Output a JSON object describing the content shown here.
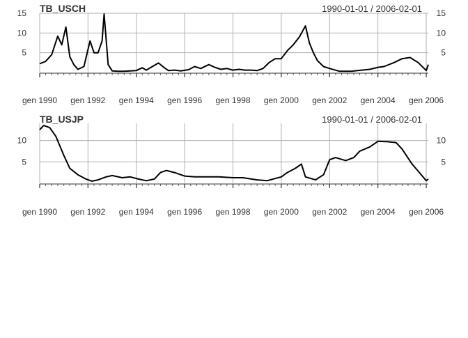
{
  "chart_data": [
    {
      "type": "line",
      "title": "TB_USCH",
      "range_label": "1990-01-01 / 2006-02-01",
      "xlabel": "",
      "ylabel": "",
      "xlim": [
        "1990-01-01",
        "2006-02-01"
      ],
      "ylim": [
        0,
        15
      ],
      "left_ticks": [
        5,
        10,
        15
      ],
      "right_ticks": [
        5,
        10,
        15
      ],
      "x_ticks": [
        {
          "date": "1990-01-01",
          "label": "gen 1990"
        },
        {
          "date": "1992-01-01",
          "label": "gen 1992"
        },
        {
          "date": "1994-01-01",
          "label": "gen 1994"
        },
        {
          "date": "1996-01-01",
          "label": "gen 1996"
        },
        {
          "date": "1998-01-01",
          "label": "gen 1998"
        },
        {
          "date": "2000-01-01",
          "label": "gen 2000"
        },
        {
          "date": "2002-01-01",
          "label": "gen 2002"
        },
        {
          "date": "2004-01-01",
          "label": "gen 2004"
        },
        {
          "date": "2006-01-01",
          "label": "gen 2006"
        }
      ],
      "grid": true,
      "series": [
        {
          "x": [
            "1990-01-01",
            "1990-04-01",
            "1990-07-01",
            "1990-10-01",
            "1990-12-01",
            "1991-02-01",
            "1991-04-01",
            "1991-06-01",
            "1991-08-01",
            "1991-11-01",
            "1992-02-01",
            "1992-04-01",
            "1992-06-01",
            "1992-08-01",
            "1992-09-01",
            "1992-11-01",
            "1993-01-01",
            "1993-04-01",
            "1993-07-01",
            "1993-10-01",
            "1994-01-01",
            "1994-04-01",
            "1994-06-01",
            "1994-09-01",
            "1994-12-01",
            "1995-03-01",
            "1995-05-01",
            "1995-08-01",
            "1995-11-01",
            "1996-03-01",
            "1996-06-01",
            "1996-09-01",
            "1997-01-01",
            "1997-04-01",
            "1997-07-01",
            "1997-10-01",
            "1998-01-01",
            "1998-04-01",
            "1998-07-01",
            "1998-10-01",
            "1999-01-01",
            "1999-04-01",
            "1999-07-01",
            "1999-10-01",
            "2000-01-01",
            "2000-04-01",
            "2000-07-01",
            "2000-10-01",
            "2001-01-01",
            "2001-03-01",
            "2001-05-01",
            "2001-07-01",
            "2001-10-01",
            "2002-01-01",
            "2002-06-01",
            "2002-12-01",
            "2003-03-01",
            "2003-09-01",
            "2004-01-01",
            "2004-04-01",
            "2004-09-01",
            "2005-01-01",
            "2005-05-01",
            "2005-09-01",
            "2006-01-01",
            "2006-02-01"
          ],
          "y": [
            2.2,
            2.8,
            4.5,
            9.2,
            7.0,
            11.5,
            4.0,
            2.0,
            0.8,
            1.5,
            8.0,
            5.0,
            5.0,
            8.0,
            14.8,
            2.0,
            0.4,
            0.3,
            0.3,
            0.4,
            0.5,
            1.2,
            0.6,
            1.5,
            2.4,
            1.2,
            0.5,
            0.6,
            0.4,
            0.7,
            1.5,
            1.0,
            2.0,
            1.3,
            0.8,
            1.0,
            0.6,
            0.8,
            0.6,
            0.6,
            0.5,
            1.0,
            2.5,
            3.5,
            3.5,
            5.5,
            7.0,
            9.0,
            11.8,
            7.5,
            5.0,
            3.0,
            1.5,
            1.0,
            0.3,
            0.3,
            0.5,
            0.8,
            1.3,
            1.5,
            2.5,
            3.5,
            3.8,
            2.5,
            0.5,
            2.0
          ]
        }
      ]
    },
    {
      "type": "line",
      "title": "TB_USJP",
      "range_label": "1990-01-01 / 2006-02-01",
      "xlabel": "",
      "ylabel": "",
      "xlim": [
        "1990-01-01",
        "2006-02-01"
      ],
      "ylim": [
        0,
        14
      ],
      "left_ticks": [
        5,
        10
      ],
      "right_ticks": [
        5,
        10
      ],
      "x_ticks": [
        {
          "date": "1990-01-01",
          "label": "gen 1990"
        },
        {
          "date": "1992-01-01",
          "label": "gen 1992"
        },
        {
          "date": "1994-01-01",
          "label": "gen 1994"
        },
        {
          "date": "1996-01-01",
          "label": "gen 1996"
        },
        {
          "date": "1998-01-01",
          "label": "gen 1998"
        },
        {
          "date": "2000-01-01",
          "label": "gen 2000"
        },
        {
          "date": "2002-01-01",
          "label": "gen 2002"
        },
        {
          "date": "2004-01-01",
          "label": "gen 2004"
        },
        {
          "date": "2006-01-01",
          "label": "gen 2006"
        }
      ],
      "grid": true,
      "series": [
        {
          "x": [
            "1990-01-01",
            "1990-03-01",
            "1990-06-01",
            "1990-09-01",
            "1991-01-01",
            "1991-04-01",
            "1991-08-01",
            "1991-12-01",
            "1992-03-01",
            "1992-06-01",
            "1992-10-01",
            "1993-01-01",
            "1993-06-01",
            "1993-10-01",
            "1994-02-01",
            "1994-06-01",
            "1994-10-01",
            "1995-01-01",
            "1995-04-01",
            "1995-08-01",
            "1996-01-01",
            "1996-06-01",
            "1997-01-01",
            "1997-06-01",
            "1998-01-01",
            "1998-06-01",
            "1999-01-01",
            "1999-06-01",
            "2000-01-01",
            "2000-04-01",
            "2000-08-01",
            "2000-11-01",
            "2001-01-01",
            "2001-06-01",
            "2001-10-01",
            "2002-01-01",
            "2002-04-01",
            "2002-09-01",
            "2003-01-01",
            "2003-04-01",
            "2003-09-01",
            "2004-01-01",
            "2004-06-01",
            "2004-10-01",
            "2005-01-01",
            "2005-06-01",
            "2006-01-01",
            "2006-02-01"
          ],
          "y": [
            12.5,
            13.5,
            13.0,
            11.0,
            6.5,
            3.5,
            2.0,
            1.0,
            0.5,
            0.8,
            1.5,
            1.8,
            1.3,
            1.5,
            1.0,
            0.6,
            1.0,
            2.5,
            3.0,
            2.5,
            1.7,
            1.5,
            1.5,
            1.5,
            1.3,
            1.3,
            0.8,
            0.6,
            1.5,
            2.5,
            3.5,
            4.5,
            1.5,
            0.8,
            2.0,
            5.5,
            6.0,
            5.3,
            6.0,
            7.5,
            8.5,
            9.8,
            9.7,
            9.5,
            8.0,
            4.5,
            0.6,
            1.0
          ]
        }
      ]
    }
  ]
}
